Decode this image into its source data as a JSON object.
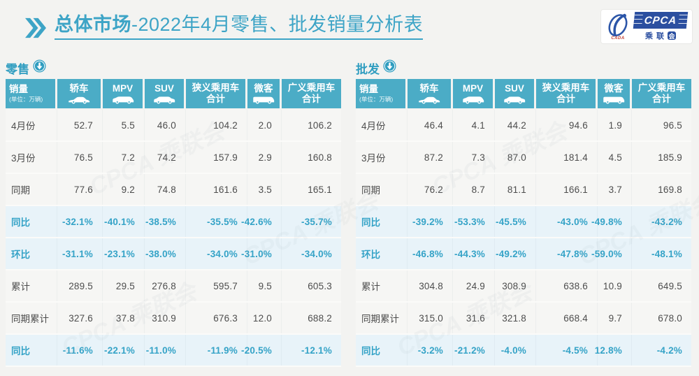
{
  "title": {
    "highlight": "总体市场",
    "rest": "-2022年4月零售、批发销量分析表"
  },
  "logo": {
    "emblem_text": "CADA",
    "box_text": "CPCA",
    "cn_chars": [
      "乘",
      "联",
      "会"
    ]
  },
  "watermark_text": "CPCA 乘联会",
  "columns": [
    {
      "key": "sales",
      "label": "销量",
      "sub": "(单位：万辆)"
    },
    {
      "key": "sedan",
      "label": "轿车",
      "icon": "sedan-car-icon"
    },
    {
      "key": "mpv",
      "label": "MPV",
      "icon": "mpv-car-icon"
    },
    {
      "key": "suv",
      "label": "SUV",
      "icon": "suv-car-icon"
    },
    {
      "key": "narrow-pv-total",
      "label": "狭义乘用车",
      "label2": "合计"
    },
    {
      "key": "minibus",
      "label": "微客",
      "icon": "minibus-car-icon"
    },
    {
      "key": "broad-pv-total",
      "label": "广义乘用车",
      "label2": "合计"
    }
  ],
  "tables": [
    {
      "key": "retail",
      "label": "零售",
      "rows": [
        {
          "key": "apr",
          "label": "4月份",
          "type": "data",
          "values": [
            "52.7",
            "5.5",
            "46.0",
            "104.2",
            "2.0",
            "106.2"
          ]
        },
        {
          "key": "mar",
          "label": "3月份",
          "type": "data",
          "values": [
            "76.5",
            "7.2",
            "74.2",
            "157.9",
            "2.9",
            "160.8"
          ]
        },
        {
          "key": "prior-year-period",
          "label": "同期",
          "type": "data",
          "values": [
            "77.6",
            "9.2",
            "74.8",
            "161.6",
            "3.5",
            "165.1"
          ]
        },
        {
          "key": "yoy",
          "label": "同比",
          "type": "pct",
          "values": [
            "-32.1%",
            "-40.1%",
            "-38.5%",
            "-35.5%",
            "-42.6%",
            "-35.7%"
          ]
        },
        {
          "key": "mom",
          "label": "环比",
          "type": "pct",
          "values": [
            "-31.1%",
            "-23.1%",
            "-38.0%",
            "-34.0%",
            "-31.0%",
            "-34.0%"
          ]
        },
        {
          "key": "cumulative",
          "label": "累计",
          "type": "data",
          "values": [
            "289.5",
            "29.5",
            "276.8",
            "595.7",
            "9.5",
            "605.3"
          ]
        },
        {
          "key": "prior-cumulative",
          "label": "同期累计",
          "type": "data",
          "values": [
            "327.6",
            "37.8",
            "310.9",
            "676.3",
            "12.0",
            "688.2"
          ]
        },
        {
          "key": "cumulative-yoy",
          "label": "同比",
          "type": "pct",
          "values": [
            "-11.6%",
            "-22.1%",
            "-11.0%",
            "-11.9%",
            "-20.5%",
            "-12.1%"
          ]
        }
      ]
    },
    {
      "key": "wholesale",
      "label": "批发",
      "rows": [
        {
          "key": "apr",
          "label": "4月份",
          "type": "data",
          "values": [
            "46.4",
            "4.1",
            "44.2",
            "94.6",
            "1.9",
            "96.5"
          ]
        },
        {
          "key": "mar",
          "label": "3月份",
          "type": "data",
          "values": [
            "87.2",
            "7.3",
            "87.0",
            "181.4",
            "4.5",
            "185.9"
          ]
        },
        {
          "key": "prior-year-period",
          "label": "同期",
          "type": "data",
          "values": [
            "76.2",
            "8.7",
            "81.1",
            "166.1",
            "3.7",
            "169.8"
          ]
        },
        {
          "key": "yoy",
          "label": "同比",
          "type": "pct",
          "values": [
            "-39.2%",
            "-53.3%",
            "-45.5%",
            "-43.0%",
            "-49.8%",
            "-43.2%"
          ]
        },
        {
          "key": "mom",
          "label": "环比",
          "type": "pct",
          "values": [
            "-46.8%",
            "-44.3%",
            "-49.2%",
            "-47.8%",
            "-59.0%",
            "-48.1%"
          ]
        },
        {
          "key": "cumulative",
          "label": "累计",
          "type": "data",
          "values": [
            "304.8",
            "24.9",
            "308.9",
            "638.6",
            "10.9",
            "649.5"
          ]
        },
        {
          "key": "prior-cumulative",
          "label": "同期累计",
          "type": "data",
          "values": [
            "315.0",
            "31.6",
            "321.8",
            "668.4",
            "9.7",
            "678.0"
          ]
        },
        {
          "key": "cumulative-yoy",
          "label": "同比",
          "type": "pct",
          "values": [
            "-3.2%",
            "-21.2%",
            "-4.0%",
            "-4.5%",
            "12.8%",
            "-4.2%"
          ]
        }
      ]
    }
  ],
  "colors": {
    "accent_teal": "#4bacc6",
    "title_teal": "#3da4c6",
    "pct_text": "#35a3c7",
    "pct_row_bg": "#e8f3f9",
    "data_row_bg": "#f6f6f4",
    "page_bg": "#f3f3f1",
    "logo_blue": "#2b4fa0",
    "logo_red": "#c23b2e"
  }
}
